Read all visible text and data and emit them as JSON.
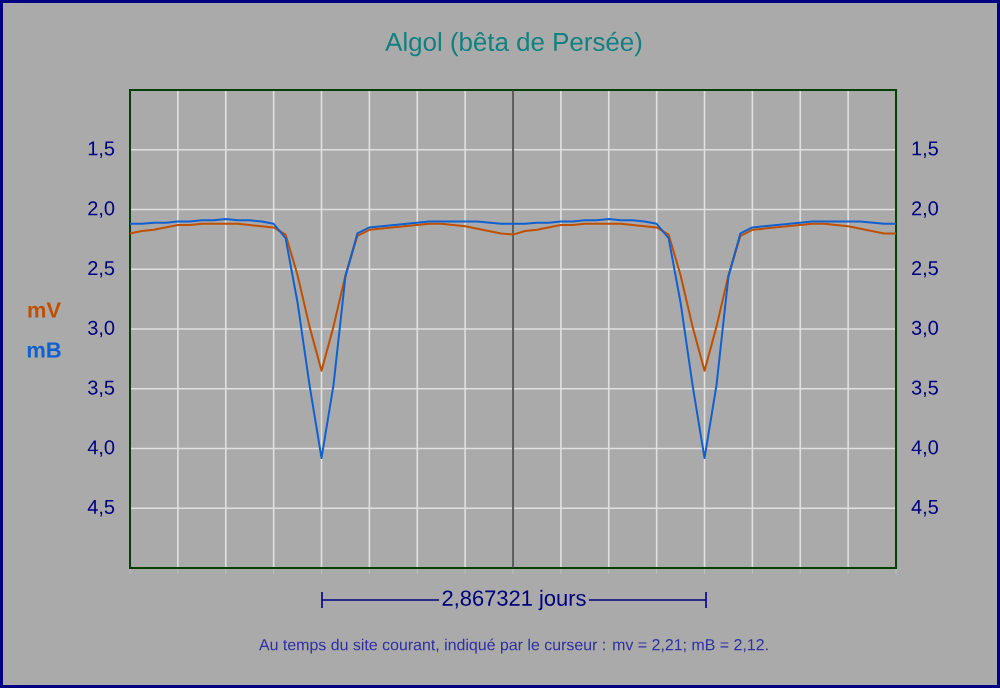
{
  "chart_data": {
    "type": "line",
    "title": "Algol (bêta de Persée)",
    "annotations": [
      "2,867321 jours",
      "Au temps du site courant, indiqué par le curseur :   mv = 2,21;   mB = 2,12."
    ],
    "categories": [
      null,
      null,
      null,
      null,
      null,
      null,
      null,
      null,
      null,
      null,
      null,
      null,
      null,
      null,
      null,
      null,
      null,
      null,
      null,
      null,
      null,
      null,
      null,
      null,
      null,
      null,
      null,
      null,
      null,
      null,
      null,
      null,
      null,
      null,
      null,
      null,
      null,
      null,
      null,
      null,
      null,
      null,
      null,
      null,
      null,
      null,
      null,
      null,
      null,
      null,
      null,
      null,
      null,
      null,
      null,
      null,
      null,
      null,
      null,
      null,
      null,
      null,
      null,
      null,
      null
    ],
    "series": [
      {
        "name": "mV",
        "color": "#c05000",
        "values": [
          2.2,
          2.18,
          2.17,
          2.15,
          2.13,
          2.13,
          2.12,
          2.12,
          2.12,
          2.12,
          2.13,
          2.14,
          2.15,
          2.21,
          2.55,
          2.98,
          3.35,
          2.98,
          2.55,
          2.22,
          2.17,
          2.16,
          2.15,
          2.14,
          2.13,
          2.12,
          2.12,
          2.13,
          2.14,
          2.16,
          2.18,
          2.2,
          2.21,
          2.18,
          2.17,
          2.15,
          2.13,
          2.13,
          2.12,
          2.12,
          2.12,
          2.12,
          2.13,
          2.14,
          2.15,
          2.21,
          2.55,
          2.98,
          3.35,
          2.98,
          2.55,
          2.22,
          2.17,
          2.16,
          2.15,
          2.14,
          2.13,
          2.12,
          2.12,
          2.13,
          2.14,
          2.16,
          2.18,
          2.2,
          2.2
        ]
      },
      {
        "name": "mB",
        "color": "#1060d0",
        "values": [
          2.12,
          2.12,
          2.11,
          2.11,
          2.1,
          2.1,
          2.09,
          2.09,
          2.08,
          2.09,
          2.09,
          2.1,
          2.12,
          2.24,
          2.78,
          3.47,
          4.08,
          3.47,
          2.56,
          2.2,
          2.15,
          2.14,
          2.13,
          2.12,
          2.11,
          2.1,
          2.1,
          2.1,
          2.1,
          2.1,
          2.11,
          2.12,
          2.12,
          2.12,
          2.11,
          2.11,
          2.1,
          2.1,
          2.09,
          2.09,
          2.08,
          2.09,
          2.09,
          2.1,
          2.12,
          2.24,
          2.78,
          3.47,
          4.08,
          3.47,
          2.56,
          2.2,
          2.15,
          2.14,
          2.13,
          2.12,
          2.11,
          2.1,
          2.1,
          2.1,
          2.1,
          2.1,
          2.11,
          2.12,
          2.12
        ]
      }
    ],
    "ylim": [
      5.0,
      1.0
    ],
    "yticks": [
      {
        "value": 1.5,
        "label": "1,5"
      },
      {
        "value": 2.0,
        "label": "2,0"
      },
      {
        "value": 2.5,
        "label": "2,5"
      },
      {
        "value": 3.0,
        "label": "3,0"
      },
      {
        "value": 3.5,
        "label": "3,5"
      },
      {
        "value": 4.0,
        "label": "4,0"
      },
      {
        "value": 4.5,
        "label": "4,5"
      }
    ],
    "y2lim": [
      5.0,
      1.0
    ],
    "y2ticks": [
      {
        "value": 1.5,
        "label": "1,5"
      },
      {
        "value": 2.0,
        "label": "2,0"
      },
      {
        "value": 2.5,
        "label": "2,5"
      },
      {
        "value": 3.0,
        "label": "3,0"
      },
      {
        "value": 3.5,
        "label": "3,5"
      },
      {
        "value": 4.0,
        "label": "4,0"
      },
      {
        "value": 4.5,
        "label": "4,5"
      }
    ],
    "grid": true,
    "marker": "none",
    "line_style": "solid"
  }
}
